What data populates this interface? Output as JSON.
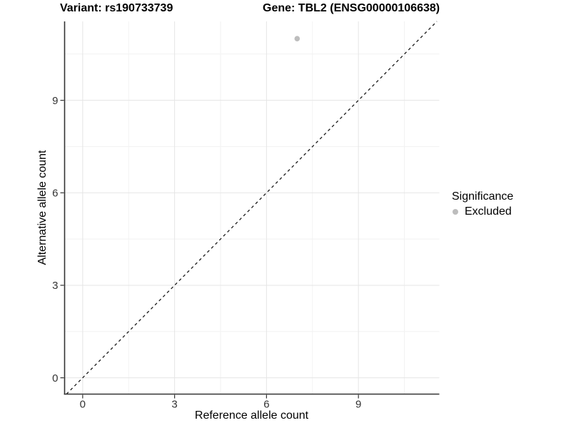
{
  "titles": {
    "left": "Variant: rs190733739",
    "right": "Gene: TBL2 (ENSG00000106638)"
  },
  "axes": {
    "x_label": "Reference allele count",
    "y_label": "Alternative allele count"
  },
  "legend": {
    "title": "Significance",
    "items": [
      {
        "label": "Excluded",
        "color": "#bdbdbd"
      }
    ]
  },
  "colors": {
    "background": "#ffffff",
    "grid_major": "#e5e5e5",
    "grid_minor": "#f2f2f2",
    "axis_line": "#333333",
    "tick_mark": "#333333",
    "tick_label": "#333333",
    "dashed_line": "#1a1a1a",
    "point": "#bdbdbd"
  },
  "chart_data": {
    "type": "scatter",
    "title": "Variant: rs190733739 / Gene: TBL2 (ENSG00000106638)",
    "xlabel": "Reference allele count",
    "ylabel": "Alternative allele count",
    "xlim": [
      -0.59,
      11.64
    ],
    "ylim": [
      -0.53,
      11.56
    ],
    "x_ticks": [
      0,
      3,
      6,
      9
    ],
    "y_ticks": [
      0,
      3,
      6,
      9
    ],
    "x_minor": [
      1.5,
      4.5,
      7.5,
      10.5
    ],
    "y_minor": [
      1.5,
      4.5,
      7.5,
      10.5
    ],
    "grid": true,
    "legend_position": "right",
    "series": [
      {
        "name": "Excluded",
        "color": "#bdbdbd",
        "points": [
          [
            7,
            11
          ]
        ]
      }
    ],
    "reference_line": {
      "type": "identity",
      "slope": 1,
      "intercept": 0,
      "style": "dashed",
      "color": "#1a1a1a"
    }
  }
}
